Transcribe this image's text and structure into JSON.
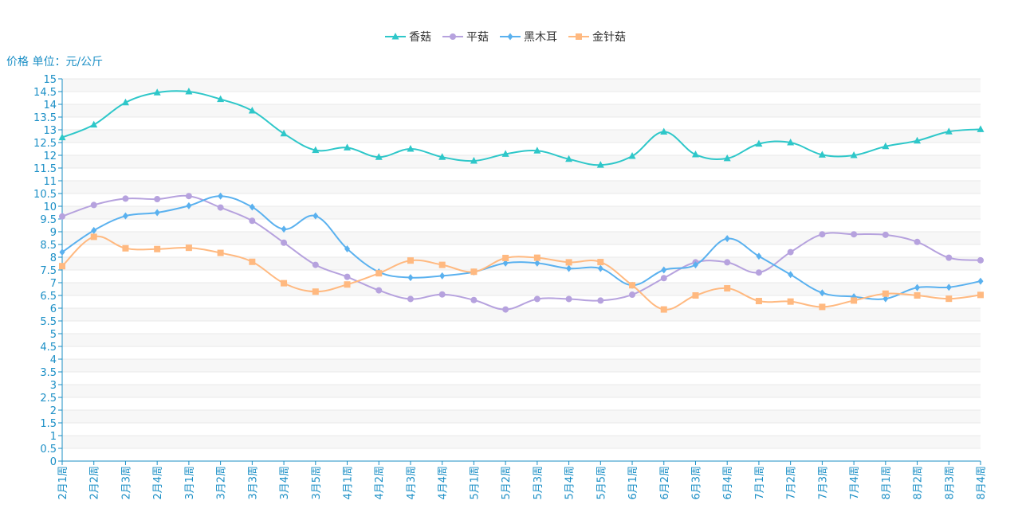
{
  "chart_data": {
    "type": "line",
    "title": "",
    "ylabel": "价格 单位：元/公斤",
    "xlabel": "",
    "ylim": [
      0,
      15
    ],
    "ytick_step": 0.5,
    "yticks": [
      "0",
      "0.5",
      "1",
      "1.5",
      "2",
      "2.5",
      "3",
      "3.5",
      "4",
      "4.5",
      "5",
      "5.5",
      "6",
      "6.5",
      "7",
      "7.5",
      "8",
      "8.5",
      "9",
      "9.5",
      "10",
      "10.5",
      "11",
      "11.5",
      "12",
      "12.5",
      "13",
      "13.5",
      "14",
      "14.5",
      "15"
    ],
    "legend_position": "top-center",
    "categories": [
      "2月1周",
      "2月2周",
      "2月3周",
      "2月4周",
      "3月1周",
      "3月2周",
      "3月3周",
      "3月4周",
      "3月5周",
      "4月1周",
      "4月2周",
      "4月3周",
      "4月4周",
      "5月1周",
      "5月2周",
      "5月3周",
      "5月4周",
      "5月5周",
      "6月1周",
      "6月2周",
      "6月3周",
      "6月4周",
      "7月1周",
      "7月2周",
      "7月3周",
      "7月4周",
      "8月1周",
      "8月2周",
      "8月3周",
      "8月4周"
    ],
    "series": [
      {
        "name": "香菇",
        "color": "#2ec7c9",
        "marker": "triangle",
        "values": [
          12.7,
          13.2,
          14.07,
          14.46,
          14.5,
          14.2,
          13.75,
          12.85,
          12.2,
          12.3,
          11.93,
          12.25,
          11.93,
          11.78,
          12.05,
          12.18,
          11.85,
          11.62,
          11.97,
          12.92,
          12.03,
          11.88,
          12.45,
          12.5,
          12.02,
          12.0,
          12.35,
          12.57,
          12.93,
          13.02
        ]
      },
      {
        "name": "平菇",
        "color": "#b6a2de",
        "marker": "circle",
        "values": [
          9.6,
          10.05,
          10.3,
          10.28,
          10.4,
          9.95,
          9.43,
          8.57,
          7.7,
          7.23,
          6.7,
          6.36,
          6.54,
          6.32,
          5.95,
          6.36,
          6.36,
          6.3,
          6.53,
          7.18,
          7.8,
          7.8,
          7.4,
          8.2,
          8.9,
          8.9,
          8.88,
          8.6,
          7.98,
          7.88
        ]
      },
      {
        "name": "黑木耳",
        "color": "#5ab1ef",
        "marker": "diamond",
        "values": [
          8.2,
          9.05,
          9.62,
          9.75,
          10.02,
          10.4,
          9.97,
          9.1,
          9.62,
          8.33,
          7.42,
          7.2,
          7.27,
          7.42,
          7.77,
          7.77,
          7.56,
          7.56,
          6.9,
          7.5,
          7.7,
          8.73,
          8.04,
          7.32,
          6.6,
          6.45,
          6.37,
          6.81,
          6.82,
          7.06
        ]
      },
      {
        "name": "金针菇",
        "color": "#ffb980",
        "marker": "square",
        "values": [
          7.65,
          8.8,
          8.35,
          8.32,
          8.37,
          8.17,
          7.82,
          6.98,
          6.65,
          6.93,
          7.37,
          7.87,
          7.7,
          7.43,
          7.97,
          7.98,
          7.8,
          7.81,
          6.9,
          5.95,
          6.5,
          6.78,
          6.28,
          6.26,
          6.05,
          6.3,
          6.57,
          6.5,
          6.37,
          6.52
        ]
      }
    ]
  }
}
